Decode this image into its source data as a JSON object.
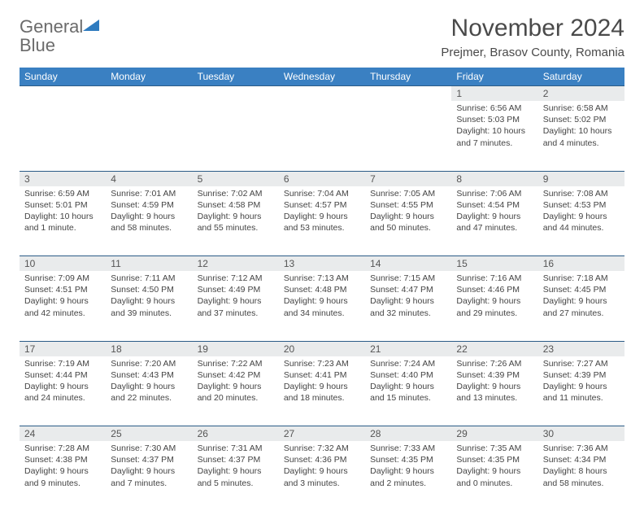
{
  "brand": {
    "word1": "General",
    "word2": "Blue"
  },
  "title": "November 2024",
  "location": "Prejmer, Brasov County, Romania",
  "colors": {
    "header_bg": "#3a80c2",
    "header_text": "#ffffff",
    "daynum_bg": "#e9ebec",
    "border": "#2b5c87",
    "brand_gray": "#6b6b6b",
    "brand_blue": "#2f7bbf"
  },
  "weekdays": [
    "Sunday",
    "Monday",
    "Tuesday",
    "Wednesday",
    "Thursday",
    "Friday",
    "Saturday"
  ],
  "weeks": [
    [
      null,
      null,
      null,
      null,
      null,
      {
        "n": "1",
        "sr": "Sunrise: 6:56 AM",
        "ss": "Sunset: 5:03 PM",
        "d1": "Daylight: 10 hours",
        "d2": "and 7 minutes."
      },
      {
        "n": "2",
        "sr": "Sunrise: 6:58 AM",
        "ss": "Sunset: 5:02 PM",
        "d1": "Daylight: 10 hours",
        "d2": "and 4 minutes."
      }
    ],
    [
      {
        "n": "3",
        "sr": "Sunrise: 6:59 AM",
        "ss": "Sunset: 5:01 PM",
        "d1": "Daylight: 10 hours",
        "d2": "and 1 minute."
      },
      {
        "n": "4",
        "sr": "Sunrise: 7:01 AM",
        "ss": "Sunset: 4:59 PM",
        "d1": "Daylight: 9 hours",
        "d2": "and 58 minutes."
      },
      {
        "n": "5",
        "sr": "Sunrise: 7:02 AM",
        "ss": "Sunset: 4:58 PM",
        "d1": "Daylight: 9 hours",
        "d2": "and 55 minutes."
      },
      {
        "n": "6",
        "sr": "Sunrise: 7:04 AM",
        "ss": "Sunset: 4:57 PM",
        "d1": "Daylight: 9 hours",
        "d2": "and 53 minutes."
      },
      {
        "n": "7",
        "sr": "Sunrise: 7:05 AM",
        "ss": "Sunset: 4:55 PM",
        "d1": "Daylight: 9 hours",
        "d2": "and 50 minutes."
      },
      {
        "n": "8",
        "sr": "Sunrise: 7:06 AM",
        "ss": "Sunset: 4:54 PM",
        "d1": "Daylight: 9 hours",
        "d2": "and 47 minutes."
      },
      {
        "n": "9",
        "sr": "Sunrise: 7:08 AM",
        "ss": "Sunset: 4:53 PM",
        "d1": "Daylight: 9 hours",
        "d2": "and 44 minutes."
      }
    ],
    [
      {
        "n": "10",
        "sr": "Sunrise: 7:09 AM",
        "ss": "Sunset: 4:51 PM",
        "d1": "Daylight: 9 hours",
        "d2": "and 42 minutes."
      },
      {
        "n": "11",
        "sr": "Sunrise: 7:11 AM",
        "ss": "Sunset: 4:50 PM",
        "d1": "Daylight: 9 hours",
        "d2": "and 39 minutes."
      },
      {
        "n": "12",
        "sr": "Sunrise: 7:12 AM",
        "ss": "Sunset: 4:49 PM",
        "d1": "Daylight: 9 hours",
        "d2": "and 37 minutes."
      },
      {
        "n": "13",
        "sr": "Sunrise: 7:13 AM",
        "ss": "Sunset: 4:48 PM",
        "d1": "Daylight: 9 hours",
        "d2": "and 34 minutes."
      },
      {
        "n": "14",
        "sr": "Sunrise: 7:15 AM",
        "ss": "Sunset: 4:47 PM",
        "d1": "Daylight: 9 hours",
        "d2": "and 32 minutes."
      },
      {
        "n": "15",
        "sr": "Sunrise: 7:16 AM",
        "ss": "Sunset: 4:46 PM",
        "d1": "Daylight: 9 hours",
        "d2": "and 29 minutes."
      },
      {
        "n": "16",
        "sr": "Sunrise: 7:18 AM",
        "ss": "Sunset: 4:45 PM",
        "d1": "Daylight: 9 hours",
        "d2": "and 27 minutes."
      }
    ],
    [
      {
        "n": "17",
        "sr": "Sunrise: 7:19 AM",
        "ss": "Sunset: 4:44 PM",
        "d1": "Daylight: 9 hours",
        "d2": "and 24 minutes."
      },
      {
        "n": "18",
        "sr": "Sunrise: 7:20 AM",
        "ss": "Sunset: 4:43 PM",
        "d1": "Daylight: 9 hours",
        "d2": "and 22 minutes."
      },
      {
        "n": "19",
        "sr": "Sunrise: 7:22 AM",
        "ss": "Sunset: 4:42 PM",
        "d1": "Daylight: 9 hours",
        "d2": "and 20 minutes."
      },
      {
        "n": "20",
        "sr": "Sunrise: 7:23 AM",
        "ss": "Sunset: 4:41 PM",
        "d1": "Daylight: 9 hours",
        "d2": "and 18 minutes."
      },
      {
        "n": "21",
        "sr": "Sunrise: 7:24 AM",
        "ss": "Sunset: 4:40 PM",
        "d1": "Daylight: 9 hours",
        "d2": "and 15 minutes."
      },
      {
        "n": "22",
        "sr": "Sunrise: 7:26 AM",
        "ss": "Sunset: 4:39 PM",
        "d1": "Daylight: 9 hours",
        "d2": "and 13 minutes."
      },
      {
        "n": "23",
        "sr": "Sunrise: 7:27 AM",
        "ss": "Sunset: 4:39 PM",
        "d1": "Daylight: 9 hours",
        "d2": "and 11 minutes."
      }
    ],
    [
      {
        "n": "24",
        "sr": "Sunrise: 7:28 AM",
        "ss": "Sunset: 4:38 PM",
        "d1": "Daylight: 9 hours",
        "d2": "and 9 minutes."
      },
      {
        "n": "25",
        "sr": "Sunrise: 7:30 AM",
        "ss": "Sunset: 4:37 PM",
        "d1": "Daylight: 9 hours",
        "d2": "and 7 minutes."
      },
      {
        "n": "26",
        "sr": "Sunrise: 7:31 AM",
        "ss": "Sunset: 4:37 PM",
        "d1": "Daylight: 9 hours",
        "d2": "and 5 minutes."
      },
      {
        "n": "27",
        "sr": "Sunrise: 7:32 AM",
        "ss": "Sunset: 4:36 PM",
        "d1": "Daylight: 9 hours",
        "d2": "and 3 minutes."
      },
      {
        "n": "28",
        "sr": "Sunrise: 7:33 AM",
        "ss": "Sunset: 4:35 PM",
        "d1": "Daylight: 9 hours",
        "d2": "and 2 minutes."
      },
      {
        "n": "29",
        "sr": "Sunrise: 7:35 AM",
        "ss": "Sunset: 4:35 PM",
        "d1": "Daylight: 9 hours",
        "d2": "and 0 minutes."
      },
      {
        "n": "30",
        "sr": "Sunrise: 7:36 AM",
        "ss": "Sunset: 4:34 PM",
        "d1": "Daylight: 8 hours",
        "d2": "and 58 minutes."
      }
    ]
  ]
}
